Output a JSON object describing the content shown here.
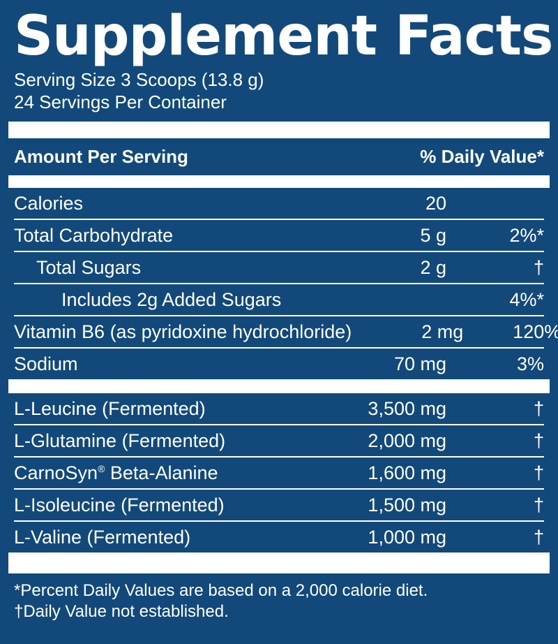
{
  "title": "Supplement Facts",
  "serving_size": "Serving Size 3 Scoops (13.8 g)",
  "servings_per_container": "24 Servings Per Container",
  "header": {
    "amount_per_serving": "Amount Per Serving",
    "daily_value": "% Daily Value*"
  },
  "nutrients": [
    {
      "name": "Calories",
      "amount": "20",
      "dv": ""
    },
    {
      "name": "Total Carbohydrate",
      "amount": "5 g",
      "dv": "2%*"
    },
    {
      "name": "Total Sugars",
      "amount": "2 g",
      "dv": "†"
    },
    {
      "name": "Includes 2g Added Sugars",
      "amount": "",
      "dv": "4%*"
    },
    {
      "name": "Vitamin B6 (as pyridoxine hydrochloride)",
      "amount": "2 mg",
      "dv": "120%"
    },
    {
      "name": "Sodium",
      "amount": "70 mg",
      "dv": "3%"
    }
  ],
  "ingredients": [
    {
      "name": "L-Leucine (Fermented)",
      "amount": "3,500 mg",
      "dv": "†"
    },
    {
      "name": "L-Glutamine (Fermented)",
      "amount": "2,000 mg",
      "dv": "†"
    },
    {
      "name": "CarnoSyn",
      "trademark": "®",
      "name_rest": " Beta-Alanine",
      "amount": "1,600 mg",
      "dv": "†"
    },
    {
      "name": "L-Isoleucine (Fermented)",
      "amount": "1,500 mg",
      "dv": "†"
    },
    {
      "name": "L-Valine (Fermented)",
      "amount": "1,000 mg",
      "dv": "†"
    }
  ],
  "footnotes": {
    "percent_note": "*Percent Daily Values are based on a 2,000 calorie diet.",
    "dagger_note": "†Daily Value not established."
  },
  "colors": {
    "background": "#12497a",
    "text": "#ffffff"
  }
}
